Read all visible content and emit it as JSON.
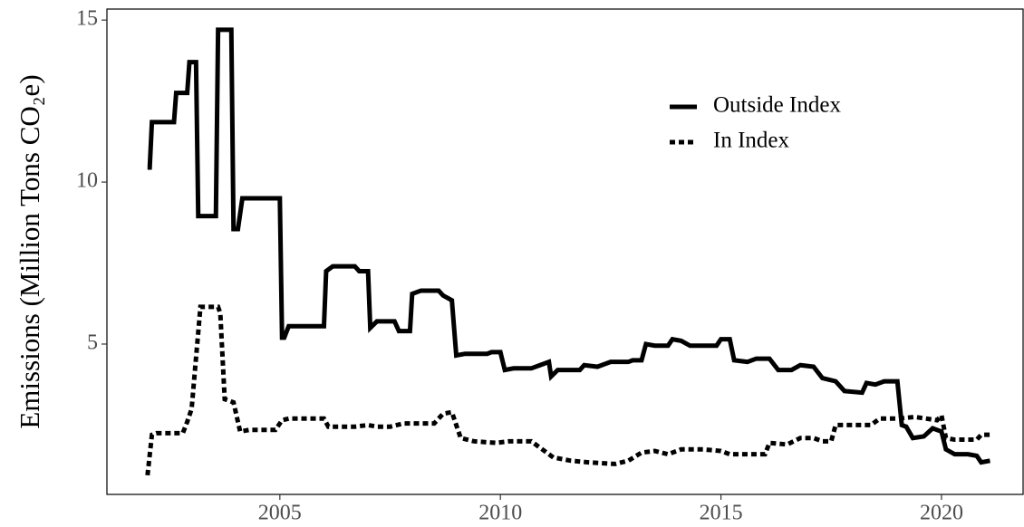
{
  "chart_data": {
    "type": "line",
    "y_label": "Emissions (Million Tons CO₂e)",
    "xlim": [
      2001.08,
      2021.85
    ],
    "ylim": [
      0.36,
      15.34
    ],
    "xticks": [
      2005,
      2010,
      2015,
      2020
    ],
    "yticks": [
      5,
      10,
      15
    ],
    "grid": false,
    "legend_position": "top right",
    "series": [
      {
        "name": "Outside Index",
        "color": "#000000",
        "linestyle": "solid",
        "x": [
          2002.0,
          2002.05,
          2002.1,
          2002.6,
          2002.65,
          2002.9,
          2002.95,
          2003.1,
          2003.15,
          2003.55,
          2003.6,
          2003.9,
          2003.95,
          2004.05,
          2004.15,
          2005.0,
          2005.05,
          2005.1,
          2005.2,
          2006.0,
          2006.05,
          2006.2,
          2006.7,
          2006.8,
          2007.0,
          2007.05,
          2007.2,
          2007.6,
          2007.7,
          2007.95,
          2008.0,
          2008.2,
          2008.6,
          2008.7,
          2008.9,
          2009.0,
          2009.2,
          2009.7,
          2009.8,
          2010.0,
          2010.1,
          2010.3,
          2010.7,
          2010.9,
          2011.1,
          2011.15,
          2011.3,
          2011.8,
          2011.9,
          2012.2,
          2012.5,
          2012.9,
          2013.0,
          2013.2,
          2013.3,
          2013.5,
          2013.8,
          2013.9,
          2014.1,
          2014.3,
          2014.9,
          2015.0,
          2015.2,
          2015.3,
          2015.6,
          2015.8,
          2016.1,
          2016.3,
          2016.6,
          2016.8,
          2017.1,
          2017.3,
          2017.6,
          2017.8,
          2018.2,
          2018.3,
          2018.5,
          2018.7,
          2019.0,
          2019.1,
          2019.2,
          2019.35,
          2019.6,
          2019.8,
          2020.0,
          2020.1,
          2020.3,
          2020.6,
          2020.8,
          2020.9,
          2021.1
        ],
        "values": [
          10.45,
          10.45,
          11.85,
          11.85,
          12.75,
          12.75,
          13.7,
          13.7,
          8.95,
          8.95,
          14.7,
          14.7,
          8.55,
          8.55,
          9.5,
          9.5,
          5.2,
          5.2,
          5.55,
          5.55,
          7.25,
          7.4,
          7.4,
          7.25,
          7.25,
          5.5,
          5.7,
          5.7,
          5.4,
          5.4,
          6.55,
          6.65,
          6.65,
          6.5,
          6.35,
          4.65,
          4.7,
          4.7,
          4.75,
          4.75,
          4.2,
          4.25,
          4.25,
          4.35,
          4.45,
          4.0,
          4.2,
          4.2,
          4.35,
          4.3,
          4.45,
          4.45,
          4.5,
          4.5,
          5.0,
          4.95,
          4.95,
          5.15,
          5.1,
          4.95,
          4.95,
          5.15,
          5.15,
          4.5,
          4.45,
          4.55,
          4.55,
          4.2,
          4.2,
          4.35,
          4.3,
          3.95,
          3.85,
          3.55,
          3.5,
          3.8,
          3.75,
          3.85,
          3.85,
          2.5,
          2.45,
          2.1,
          2.15,
          2.4,
          2.3,
          1.75,
          1.6,
          1.6,
          1.55,
          1.35,
          1.4
        ]
      },
      {
        "name": "In Index",
        "color": "#000000",
        "linestyle": "dotted",
        "x": [
          2002.0,
          2002.1,
          2002.2,
          2002.8,
          2002.9,
          2003.0,
          2003.2,
          2003.6,
          2003.65,
          2003.75,
          2003.95,
          2004.1,
          2004.3,
          2004.9,
          2005.05,
          2005.2,
          2006.0,
          2006.1,
          2006.7,
          2007.0,
          2007.2,
          2007.5,
          2007.8,
          2008.5,
          2008.7,
          2008.9,
          2009.1,
          2009.4,
          2009.9,
          2010.2,
          2010.7,
          2010.9,
          2011.2,
          2011.6,
          2012.0,
          2012.6,
          2012.9,
          2013.2,
          2013.5,
          2013.8,
          2014.1,
          2014.6,
          2015.0,
          2015.2,
          2016.0,
          2016.1,
          2016.5,
          2016.8,
          2017.1,
          2017.3,
          2017.5,
          2017.6,
          2018.4,
          2018.6,
          2019.0,
          2019.4,
          2019.9,
          2020.0,
          2020.1,
          2020.3,
          2020.8,
          2020.9,
          2021.1
        ],
        "values": [
          0.95,
          2.2,
          2.25,
          2.25,
          2.6,
          3.0,
          6.15,
          6.15,
          5.95,
          3.3,
          3.2,
          2.3,
          2.35,
          2.35,
          2.65,
          2.7,
          2.7,
          2.45,
          2.45,
          2.5,
          2.45,
          2.45,
          2.55,
          2.55,
          2.85,
          2.9,
          2.1,
          2.0,
          1.95,
          2.0,
          2.0,
          1.8,
          1.5,
          1.4,
          1.35,
          1.3,
          1.4,
          1.65,
          1.7,
          1.6,
          1.75,
          1.75,
          1.7,
          1.6,
          1.6,
          1.95,
          1.9,
          2.1,
          2.1,
          2.0,
          2.0,
          2.5,
          2.5,
          2.7,
          2.7,
          2.75,
          2.65,
          2.8,
          2.1,
          2.05,
          2.05,
          2.2,
          2.2
        ]
      }
    ]
  }
}
